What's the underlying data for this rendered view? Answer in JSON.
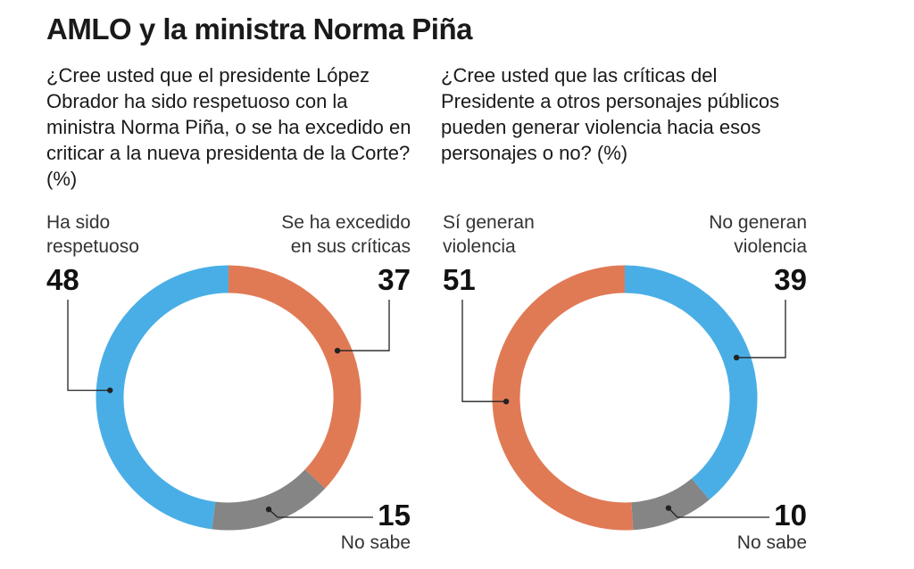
{
  "title": "AMLO y la ministra Norma Piña",
  "colors": {
    "blue": "#4aaee6",
    "orange": "#e07a55",
    "gray": "#858585"
  },
  "chart_data": [
    {
      "type": "pie",
      "title": "¿Cree usted que el presidente López Obrador ha sido respetuoso con la ministra Norma Piña, o se ha excedido en criticar a la nueva presidenta de la Corte? (%)",
      "slices": [
        {
          "label": "Se ha excedido en sus críticas",
          "label_lines": [
            "Se ha excedido",
            "en sus críticas"
          ],
          "value": 37,
          "color": "#e07a55"
        },
        {
          "label": "No sabe",
          "label_lines": [
            "No sabe"
          ],
          "value": 15,
          "color": "#858585"
        },
        {
          "label": "Ha sido respetuoso",
          "label_lines": [
            "Ha sido",
            "respetuoso"
          ],
          "value": 48,
          "color": "#4aaee6"
        }
      ]
    },
    {
      "type": "pie",
      "title": "¿Cree usted que las críticas del Presidente a otros personajes públicos pueden generar violencia hacia esos personajes o no? (%)",
      "slices": [
        {
          "label": "No generan violencia",
          "label_lines": [
            "No generan",
            "violencia"
          ],
          "value": 39,
          "color": "#4aaee6"
        },
        {
          "label": "No sabe",
          "label_lines": [
            "No sabe"
          ],
          "value": 10,
          "color": "#858585"
        },
        {
          "label": "Sí generan violencia",
          "label_lines": [
            "Sí generan",
            "violencia"
          ],
          "value": 51,
          "color": "#e07a55"
        }
      ]
    }
  ]
}
